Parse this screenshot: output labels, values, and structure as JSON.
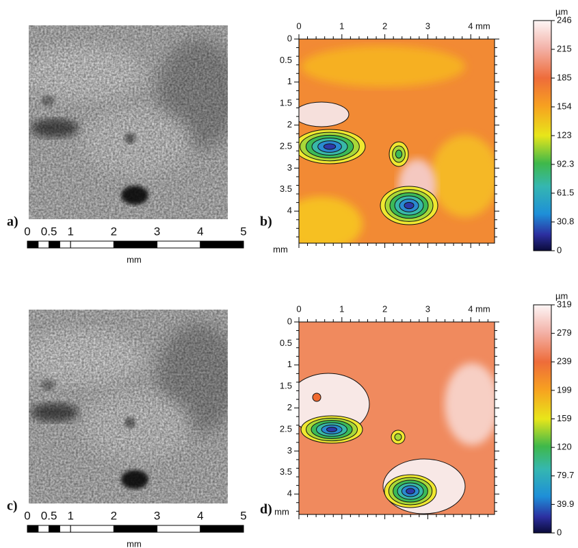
{
  "figure": {
    "photos": [
      {
        "label": "a)",
        "scale_bar": {
          "ticks": [
            "0",
            "0.5",
            "1",
            "2",
            "3",
            "4",
            "5"
          ],
          "unit": "mm"
        }
      },
      {
        "label": "c)",
        "scale_bar": {
          "ticks": [
            "0",
            "0.5",
            "1",
            "2",
            "3",
            "4",
            "5"
          ],
          "unit": "mm"
        }
      }
    ],
    "maps": [
      {
        "label": "b)",
        "unit": "mm",
        "x_ticks": [
          "0",
          "1",
          "2",
          "3",
          "4 mm"
        ],
        "y_ticks": [
          "0",
          "0.5",
          "1",
          "1.5",
          "2",
          "2.5",
          "3",
          "3.5",
          "4"
        ],
        "colorbar": {
          "unit": "µm",
          "ticks": [
            "246",
            "215",
            "185",
            "154",
            "123",
            "92.3",
            "61.5",
            "30.8",
            "0"
          ]
        }
      },
      {
        "label": "d)",
        "unit": "mm",
        "x_ticks": [
          "0",
          "1",
          "2",
          "3",
          "4 mm"
        ],
        "y_ticks": [
          "0",
          "0.5",
          "1",
          "1.5",
          "2",
          "2.5",
          "3",
          "3.5",
          "4"
        ],
        "colorbar": {
          "unit": "µm",
          "ticks": [
            "319",
            "279",
            "239",
            "199",
            "159",
            "120",
            "79.7",
            "39.9",
            "0"
          ]
        }
      }
    ]
  }
}
